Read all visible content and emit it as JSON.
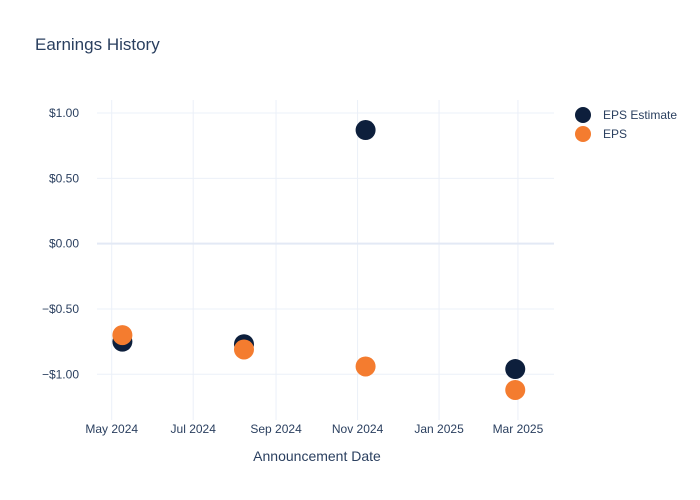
{
  "chart_data": {
    "type": "scatter",
    "title": "Earnings History",
    "xlabel": "Announcement Date",
    "ylabel": "",
    "x_ticks": [
      {
        "label": "May 2024",
        "date": "2024-05-01"
      },
      {
        "label": "Jul 2024",
        "date": "2024-07-01"
      },
      {
        "label": "Sep 2024",
        "date": "2024-09-01"
      },
      {
        "label": "Nov 2024",
        "date": "2024-11-01"
      },
      {
        "label": "Jan 2025",
        "date": "2025-01-01"
      },
      {
        "label": "Mar 2025",
        "date": "2025-03-01"
      }
    ],
    "y_ticks": [
      {
        "label": "$1.00",
        "value": 1.0
      },
      {
        "label": "$0.50",
        "value": 0.5
      },
      {
        "label": "$0.00",
        "value": 0.0
      },
      {
        "label": "−$0.50",
        "value": -0.5
      },
      {
        "label": "−$1.00",
        "value": -1.0
      }
    ],
    "xlim": [
      "2024-04-20",
      "2025-03-28"
    ],
    "ylim": [
      -1.35,
      1.1
    ],
    "grid": true,
    "legend_position": "top-right",
    "series": [
      {
        "name": "EPS Estimate",
        "color": "#0d1f3c",
        "points": [
          {
            "x": "2024-05-09",
            "y": -0.75
          },
          {
            "x": "2024-08-08",
            "y": -0.77
          },
          {
            "x": "2024-11-07",
            "y": 0.87
          },
          {
            "x": "2025-02-27",
            "y": -0.96
          }
        ]
      },
      {
        "name": "EPS",
        "color": "#f47c2f",
        "points": [
          {
            "x": "2024-05-09",
            "y": -0.7
          },
          {
            "x": "2024-08-08",
            "y": -0.81
          },
          {
            "x": "2024-11-07",
            "y": -0.94
          },
          {
            "x": "2025-02-27",
            "y": -1.12
          }
        ]
      }
    ]
  }
}
